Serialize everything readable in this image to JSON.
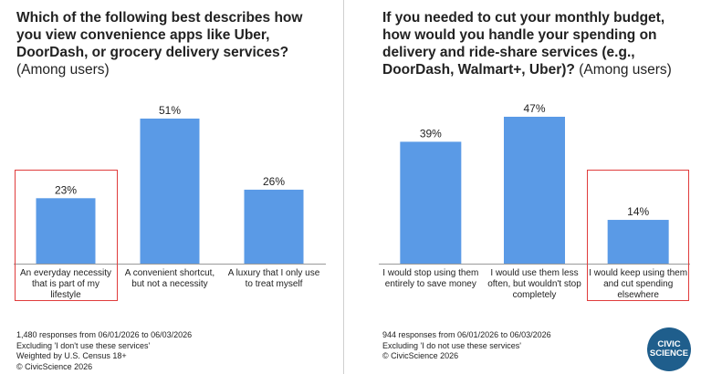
{
  "colors": {
    "bar": "#5a9ae6",
    "highlight": "#e03c3c",
    "logo_bg": "#1f5e8c"
  },
  "chart_data": [
    {
      "type": "bar",
      "title": "Which of the following best describes how you view convenience apps like Uber, DoorDash, or grocery delivery services?",
      "subtitle": "(Among users)",
      "categories": [
        [
          "An everyday necessity",
          "that is part of my",
          "lifestyle"
        ],
        [
          "A convenient shortcut,",
          "but not a necessity"
        ],
        [
          "A luxury that I only use",
          "to treat myself"
        ]
      ],
      "values": [
        23,
        51,
        26
      ],
      "value_labels": [
        "23%",
        "51%",
        "26%"
      ],
      "ylim": [
        0,
        51
      ],
      "highlighted_category_index": 0,
      "notes": [
        "1,480 responses from 06/01/2026 to 06/03/2026",
        "Excluding 'I don't use these services'",
        "Weighted by U.S. Census 18+",
        "© CivicScience 2026"
      ]
    },
    {
      "type": "bar",
      "title": "If you needed to cut your monthly budget, how would you handle your spending on delivery and ride-share services (e.g., DoorDash, Walmart+, Uber)?",
      "subtitle": "(Among users)",
      "categories": [
        [
          "I would stop using them",
          "entirely to save money"
        ],
        [
          "I would use them less",
          "often, but wouldn't stop",
          "completely"
        ],
        [
          "I would keep using them",
          "and cut spending",
          "elsewhere"
        ]
      ],
      "values": [
        39,
        47,
        14
      ],
      "value_labels": [
        "39%",
        "47%",
        "14%"
      ],
      "ylim": [
        0,
        47
      ],
      "highlighted_category_index": 2,
      "notes": [
        "944 responses from 06/01/2026 to 06/03/2026",
        "Excluding 'I do not use these services'",
        "© CivicScience 2026"
      ]
    }
  ],
  "logo": {
    "line1": "CIVIC",
    "line2": "SCIENCE"
  }
}
